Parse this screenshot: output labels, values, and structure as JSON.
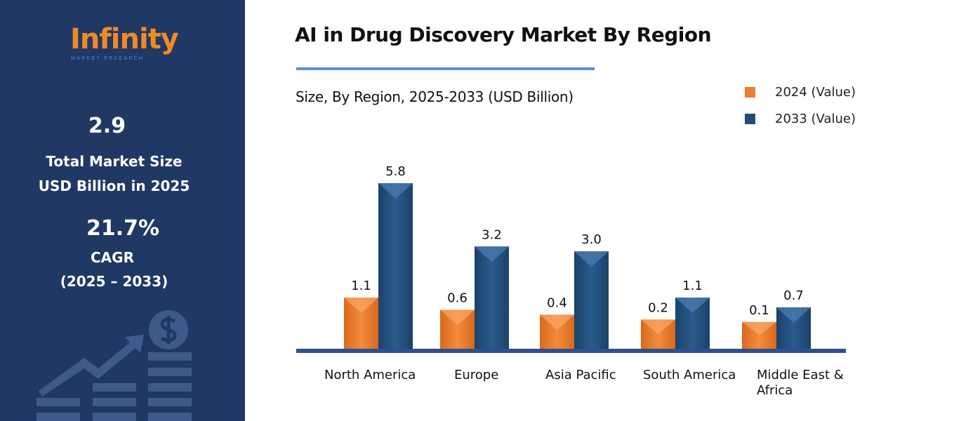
{
  "brand": {
    "name": "Infinity",
    "tagline": "MARKET RESEARCH"
  },
  "stats": {
    "market_size": "2.9",
    "market_label_1": "Total Market Size",
    "market_label_2": "USD Billion in 2025",
    "cagr": "21.7%",
    "cagr_label": "CAGR",
    "cagr_period": "(2025 – 2033)"
  },
  "colors": {
    "panel": "#203864",
    "series_2024": "#ed7d31",
    "series_2033": "#1f4e79",
    "axis": "#2f4f8f"
  },
  "chart_data": {
    "type": "bar",
    "title": "AI in Drug Discovery Market By Region",
    "subtitle": "Size, By Region, 2025-2033 (USD Billion)",
    "categories": [
      "North America",
      "Europe",
      "Asia Pacific",
      "South America",
      "Middle East & Africa"
    ],
    "series": [
      {
        "name": "2024 (Value)",
        "values": [
          1.1,
          0.6,
          0.4,
          0.2,
          0.1
        ],
        "labels": [
          "1.1",
          "0.6",
          "0.4",
          "0.2",
          "0.1"
        ]
      },
      {
        "name": "2033 (Value)",
        "values": [
          5.8,
          3.2,
          3.0,
          1.1,
          0.7
        ],
        "labels": [
          "5.8",
          "3.2",
          "3.0",
          "1.1",
          "0.7"
        ]
      }
    ],
    "legend": "top-right",
    "grid": false
  }
}
